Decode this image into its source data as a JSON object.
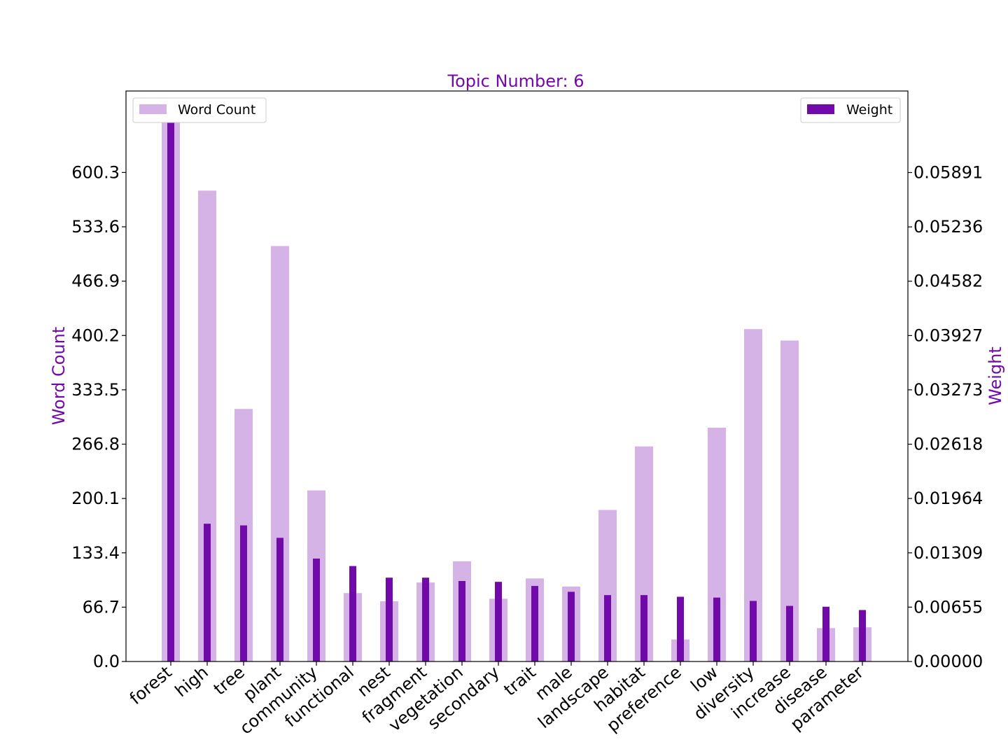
{
  "colors": {
    "count_bar": "#d5b3e6",
    "weight_bar": "#7209ab",
    "accent_text": "#7209ab"
  },
  "chart_data": {
    "type": "bar",
    "title": "Topic Number: 6",
    "categories": [
      "forest",
      "high",
      "tree",
      "plant",
      "community",
      "functional",
      "nest",
      "fragment",
      "vegetation",
      "secondary",
      "trait",
      "male",
      "landscape",
      "habitat",
      "preference",
      "low",
      "diversity",
      "increase",
      "disease",
      "parameter"
    ],
    "series": [
      {
        "name": "Word Count",
        "axis": "left",
        "values": [
          670,
          578,
          310,
          510,
          210,
          84,
          74,
          97,
          123,
          77,
          102,
          92,
          186,
          264,
          27,
          287,
          408,
          394,
          41,
          42
        ]
      },
      {
        "name": "Weight",
        "axis": "right",
        "values": [
          0.0657,
          0.0166,
          0.0164,
          0.0149,
          0.0124,
          0.0115,
          0.0101,
          0.0101,
          0.0097,
          0.0096,
          0.0091,
          0.0084,
          0.008,
          0.008,
          0.0078,
          0.0077,
          0.0073,
          0.0067,
          0.0066,
          0.0062
        ]
      }
    ],
    "ylabel": "Word Count",
    "y2label": "Weight",
    "ylim": [
      0,
      700.3
    ],
    "y2lim": [
      0,
      0.068735
    ],
    "yticks": [
      "0.0",
      "66.7",
      "133.4",
      "200.1",
      "266.8",
      "333.5",
      "400.2",
      "466.9",
      "533.6",
      "600.3"
    ],
    "y2ticks": [
      "0.00000",
      "0.00655",
      "0.01309",
      "0.01964",
      "0.02618",
      "0.03273",
      "0.03927",
      "0.04582",
      "0.05236",
      "0.05891"
    ],
    "legend": [
      {
        "label": "Word Count",
        "placement": "top-left"
      },
      {
        "label": "Weight",
        "placement": "top-right"
      }
    ],
    "grid": false
  }
}
